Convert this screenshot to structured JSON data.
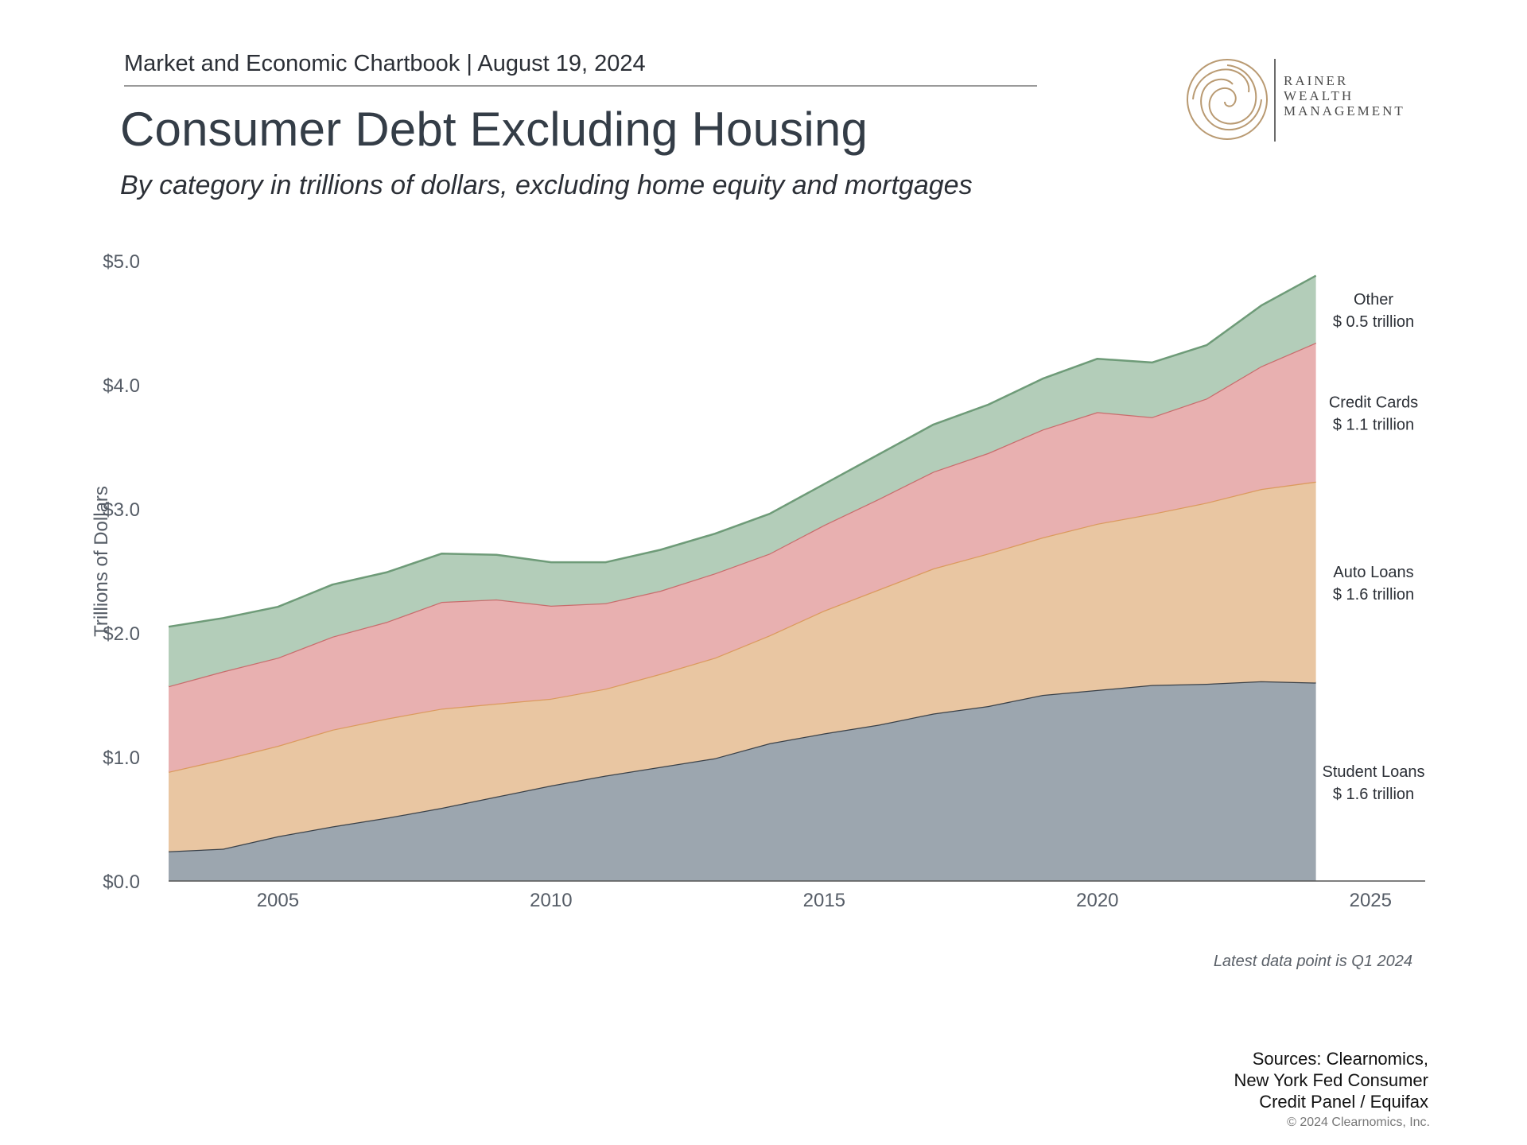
{
  "header": {
    "text": "Market and Economic Chartbook | August 19, 2024"
  },
  "logo": {
    "name": "rainer-wealth-management-logo",
    "lines": [
      "RAINER",
      "WEALTH",
      "MANAGEMENT"
    ]
  },
  "note": "Latest data point is Q1 2024",
  "sources": {
    "lines": [
      "Sources: Clearnomics,",
      "New York Fed Consumer",
      "Credit Panel / Equifax"
    ]
  },
  "copyright": "© 2024 Clearnomics, Inc.",
  "colors": {
    "student_loans": "#9ca6af",
    "auto_loans": "#e9c6a2",
    "credit_cards": "#e8b0b0",
    "other": "#b3cdb9",
    "student_line": "#3a4149",
    "auto_line": "#db9a5e",
    "credit_line": "#c86d6d",
    "other_line": "#6e9b78"
  },
  "chart_data": {
    "type": "area",
    "stacked": true,
    "title": "Consumer Debt Excluding Housing",
    "subtitle": "By category in trillions of dollars, excluding home equity and mortgages",
    "ylabel": "Trillions of Dollars",
    "xlabel": "",
    "xlim": [
      2003.0,
      2026.0
    ],
    "ylim": [
      0,
      5.0
    ],
    "x_ticks": [
      "2005",
      "2010",
      "2015",
      "2020",
      "2025"
    ],
    "y_ticks": [
      "$0.0",
      "$1.0",
      "$2.0",
      "$3.0",
      "$4.0",
      "$5.0"
    ],
    "x": [
      2003.0,
      2004.0,
      2005.0,
      2006.0,
      2007.0,
      2008.0,
      2009.0,
      2010.0,
      2011.0,
      2012.0,
      2013.0,
      2014.0,
      2015.0,
      2016.0,
      2017.0,
      2018.0,
      2019.0,
      2020.0,
      2021.0,
      2022.0,
      2023.0,
      2024.0
    ],
    "series": [
      {
        "name": "Student Loans",
        "values": [
          0.24,
          0.26,
          0.36,
          0.44,
          0.51,
          0.59,
          0.68,
          0.77,
          0.85,
          0.92,
          0.99,
          1.11,
          1.19,
          1.26,
          1.35,
          1.41,
          1.5,
          1.54,
          1.58,
          1.59,
          1.61,
          1.6
        ]
      },
      {
        "name": "Auto Loans",
        "values": [
          0.64,
          0.72,
          0.73,
          0.78,
          0.8,
          0.8,
          0.75,
          0.7,
          0.7,
          0.75,
          0.81,
          0.87,
          0.99,
          1.09,
          1.17,
          1.23,
          1.27,
          1.34,
          1.38,
          1.46,
          1.55,
          1.62
        ]
      },
      {
        "name": "Credit Cards",
        "values": [
          0.69,
          0.71,
          0.71,
          0.75,
          0.78,
          0.86,
          0.84,
          0.75,
          0.69,
          0.67,
          0.68,
          0.66,
          0.69,
          0.73,
          0.78,
          0.81,
          0.87,
          0.9,
          0.78,
          0.84,
          0.99,
          1.12
        ]
      },
      {
        "name": "Other",
        "values": [
          0.48,
          0.43,
          0.41,
          0.42,
          0.4,
          0.39,
          0.36,
          0.35,
          0.33,
          0.33,
          0.32,
          0.32,
          0.33,
          0.36,
          0.38,
          0.39,
          0.41,
          0.43,
          0.44,
          0.43,
          0.49,
          0.54
        ]
      }
    ],
    "end_labels": [
      {
        "name": "Other",
        "value_text": "$ 0.5 trillion"
      },
      {
        "name": "Credit Cards",
        "value_text": "$ 1.1 trillion"
      },
      {
        "name": "Auto Loans",
        "value_text": "$ 1.6 trillion"
      },
      {
        "name": "Student Loans",
        "value_text": "$ 1.6 trillion"
      }
    ],
    "grid": false,
    "legend": "right-end-labels"
  }
}
